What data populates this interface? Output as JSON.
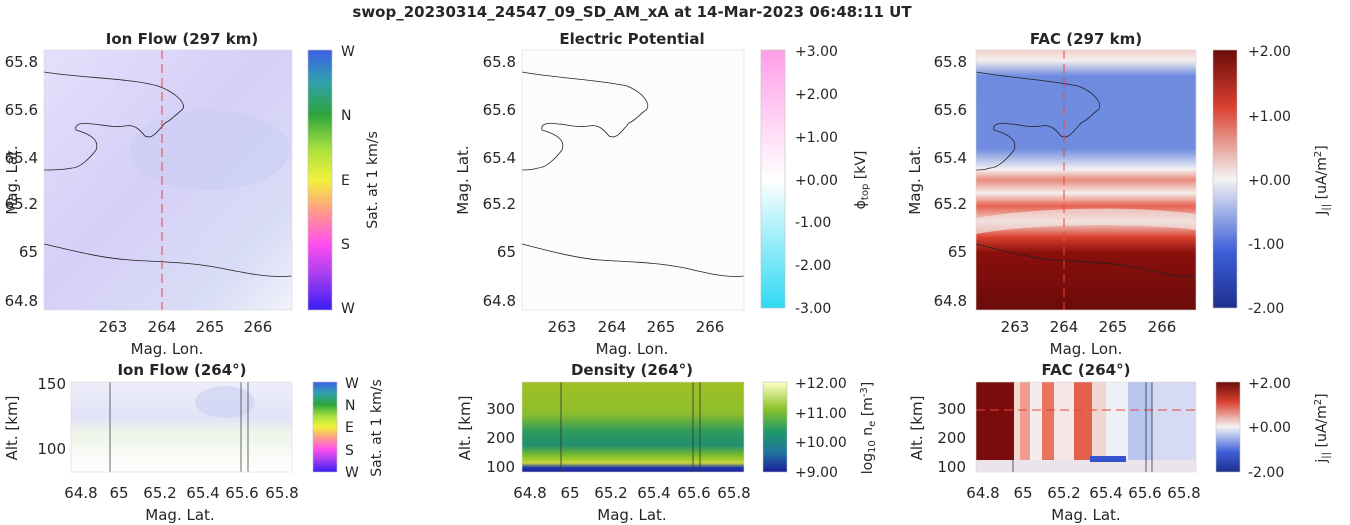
{
  "figure_title": "swop_20230314_24547_09_SD_AM_xA at 14-Mar-2023 06:48:11 UT",
  "chart_data": [
    {
      "id": "ion-flow-map",
      "type": "heatmap",
      "title": "Ion Flow (297 km)",
      "xlabel": "Mag. Lon.",
      "ylabel": "Mag. Lat.",
      "xlim": [
        262.2,
        266.6
      ],
      "ylim": [
        64.76,
        65.84
      ],
      "xticks": [
        263,
        264,
        265,
        266
      ],
      "yticks": [
        64.8,
        65,
        65.2,
        65.4,
        65.6,
        65.8
      ],
      "marker_line": {
        "axis": "x",
        "value": 264,
        "color": "#e8463c"
      },
      "colorbar": {
        "label": "Sat. at 1 km/s",
        "ticks": [
          "W",
          "N",
          "E",
          "S",
          "W"
        ]
      }
    },
    {
      "id": "electric-potential-map",
      "type": "heatmap",
      "title": "Electric Potential",
      "xlabel": "Mag. Lon.",
      "ylabel": "Mag. Lat.",
      "xlim": [
        262.2,
        266.6
      ],
      "ylim": [
        64.76,
        65.84
      ],
      "xticks": [
        263,
        264,
        265,
        266
      ],
      "yticks": [
        64.8,
        65,
        65.2,
        65.4,
        65.6,
        65.8
      ],
      "colorbar": {
        "label_main": "ϕ",
        "label_sub": "top",
        "label_unit": " [kV]",
        "ticks": [
          "+3.00",
          "+2.00",
          "+1.00",
          "+0.00",
          "-1.00",
          "-2.00",
          "-3.00"
        ],
        "range": [
          -3,
          3
        ]
      }
    },
    {
      "id": "fac-map",
      "type": "heatmap",
      "title": "FAC (297 km)",
      "xlabel": "Mag. Lon.",
      "ylabel": "Mag. Lat.",
      "xlim": [
        262.2,
        266.6
      ],
      "ylim": [
        64.76,
        65.84
      ],
      "xticks": [
        263,
        264,
        265,
        266
      ],
      "yticks": [
        64.8,
        65,
        65.2,
        65.4,
        65.6,
        65.8
      ],
      "marker_line": {
        "axis": "x",
        "value": 264,
        "color": "#e8463c"
      },
      "colorbar": {
        "label_main": "J",
        "label_sub": "||",
        "label_unit": " [uA/m",
        "label_sup": "2",
        "label_end": "]",
        "ticks": [
          "+2.00",
          "+1.00",
          "+0.00",
          "-1.00",
          "-2.00"
        ],
        "range": [
          -2,
          2
        ]
      }
    },
    {
      "id": "ion-flow-profile",
      "type": "heatmap",
      "title": "Ion Flow (264°)",
      "xlabel": "Mag. Lat.",
      "ylabel": "Alt. [km]",
      "xlim": [
        64.8,
        65.8
      ],
      "ylim": [
        80,
        150
      ],
      "xticks": [
        64.8,
        65,
        65.2,
        65.4,
        65.6,
        65.8
      ],
      "yticks": [
        100,
        150
      ],
      "colorbar": {
        "label": "Sat. at 1 km/s",
        "ticks": [
          "W",
          "N",
          "E",
          "S",
          "W"
        ]
      }
    },
    {
      "id": "density-profile",
      "type": "heatmap",
      "title": "Density (264°)",
      "xlabel": "Mag. Lat.",
      "ylabel": "Alt. [km]",
      "xlim": [
        64.8,
        65.8
      ],
      "ylim": [
        88,
        395
      ],
      "xticks": [
        64.8,
        65,
        65.2,
        65.4,
        65.6,
        65.8
      ],
      "yticks": [
        100,
        200,
        300
      ],
      "colorbar": {
        "label_main": "log",
        "label_sub": "10",
        "label_unit": " n",
        "label_sub2": "e",
        "label_unit2": " [m",
        "label_sup": "-3",
        "label_end": "]",
        "ticks": [
          "+12.00",
          "+11.00",
          "+10.00",
          "+9.00"
        ],
        "range": [
          9,
          12
        ]
      }
    },
    {
      "id": "fac-profile",
      "type": "heatmap",
      "title": "FAC (264°)",
      "xlabel": "Mag. Lat.",
      "ylabel": "Alt. [km]",
      "xlim": [
        64.8,
        65.8
      ],
      "ylim": [
        88,
        395
      ],
      "xticks": [
        64.8,
        65,
        65.2,
        65.4,
        65.6,
        65.8
      ],
      "yticks": [
        100,
        200,
        300
      ],
      "marker_line": {
        "axis": "y",
        "value": 297,
        "color": "#e8463c"
      },
      "colorbar": {
        "label_main": "j",
        "label_sub": "||",
        "label_unit": " [uA/m",
        "label_sup": "2",
        "label_end": "]",
        "ticks": [
          "+2.00",
          "+0.00",
          "-2.00"
        ],
        "range": [
          -2,
          2
        ]
      }
    }
  ],
  "colors": {
    "ion_flow_wheel": [
      "#3a1cf5",
      "#3c5ee6",
      "#2ea53c",
      "#f2f23a",
      "#ff4ef0",
      "#3a1cf5"
    ],
    "potential_scale": [
      "#2fd9f2",
      "#ffffff",
      "#ff9ee8"
    ],
    "fac_scale": [
      "#1d2f8c",
      "#3d5fd9",
      "#ffffff",
      "#d9402f",
      "#6b0c0a"
    ],
    "density_scale": [
      "#1b1b9a",
      "#1f8f6f",
      "#7fbf2a",
      "#ffffc8"
    ],
    "marker_red": "#e8463c",
    "outline": "#222222"
  }
}
